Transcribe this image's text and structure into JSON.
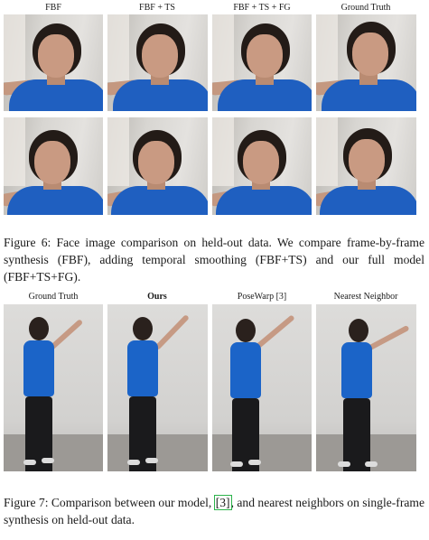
{
  "figure6": {
    "column_labels": [
      "FBF",
      "FBF + TS",
      "FBF + TS + FG",
      "Ground Truth"
    ],
    "caption": "Figure 6: Face image comparison on held-out data. We compare frame-by-frame synthesis (FBF), adding temporal smoothing (FBF+TS) and our full model (FBF+TS+FG).",
    "rows": 2
  },
  "figure7": {
    "column_labels": [
      "Ground Truth",
      "Ours",
      "PoseWarp [3]",
      "Nearest Neighbor"
    ],
    "bold_label_index": 1,
    "caption_before": "Figure 7: Comparison between our model, ",
    "caption_ref": "[3]",
    "caption_after": ", and nearest neighbors on single-frame synthesis on held-out data."
  },
  "colors": {
    "shirt": "#1f5fc0",
    "hair": "#231b17",
    "wall": "#d8d6d2",
    "link_box": "#2bb34a"
  }
}
